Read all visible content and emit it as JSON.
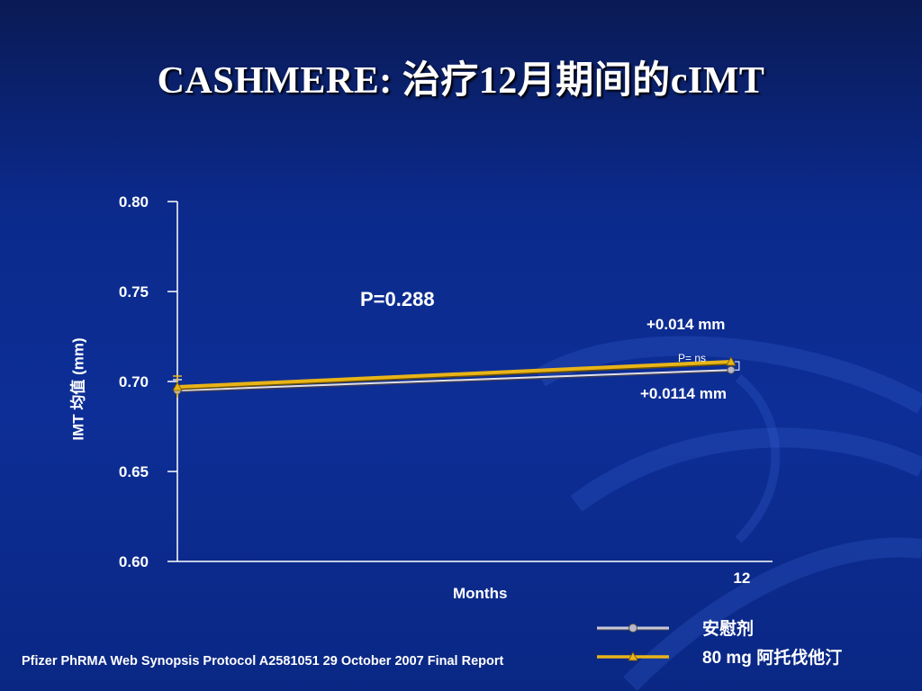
{
  "title": "CASHMERE: 治疗12月期间的cIMT",
  "footer": "Pfizer PhRMA Web Synopsis Protocol A2581051 29 October 2007 Final Report",
  "annotations": {
    "p_value": "P=0.288",
    "atorva_change": "+0.014 mm",
    "placebo_change": "+0.0114 mm",
    "between_ns": "P= ns"
  },
  "colors": {
    "placebo": "#d9d9e3",
    "atorvastatin": "#e8b418",
    "axis": "#ffffff"
  },
  "chart_data": {
    "type": "line",
    "x": [
      0,
      12
    ],
    "xlabel": "Months",
    "xticks": [
      "12"
    ],
    "ylabel": "IMT 均值 (mm)",
    "ylim": [
      0.6,
      0.8
    ],
    "yticks": [
      "0.80",
      "0.75",
      "0.70",
      "0.65",
      "0.60"
    ],
    "grid": false,
    "legend_position": "bottom-right",
    "series": [
      {
        "name": "安慰剂",
        "values": [
          0.695,
          0.7064
        ],
        "marker": "circle",
        "color": "#d9d9e3"
      },
      {
        "name": "80 mg 阿托伐他汀",
        "values": [
          0.697,
          0.711
        ],
        "marker": "triangle",
        "color": "#e8b418"
      }
    ]
  }
}
